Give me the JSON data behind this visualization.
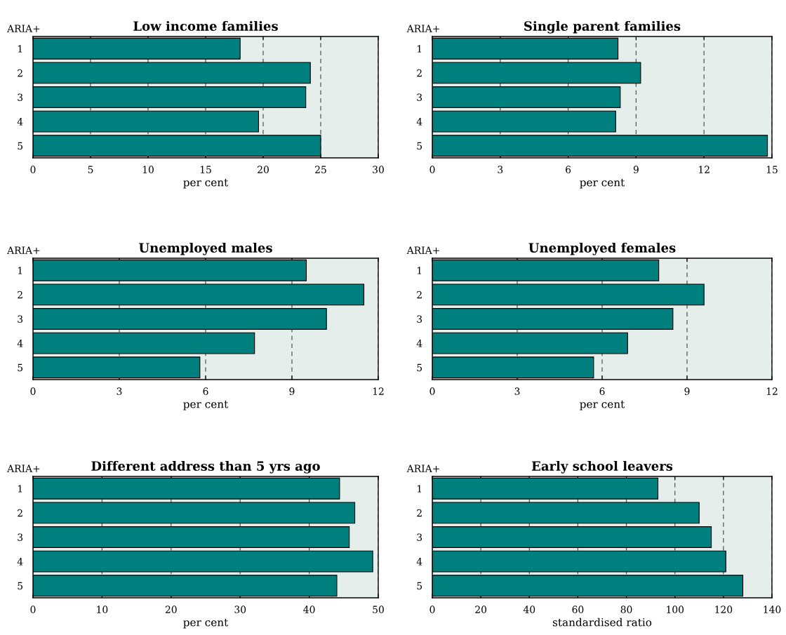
{
  "chart_data": [
    {
      "type": "bar",
      "orientation": "horizontal",
      "title": "Low income families",
      "ylabel": "ARIA+",
      "xlabel": "per cent",
      "categories": [
        "1",
        "2",
        "3",
        "4",
        "5"
      ],
      "values": [
        18.0,
        24.1,
        23.7,
        19.6,
        25.0
      ],
      "color": "#007f7f",
      "xlim": [
        0,
        30
      ],
      "xticks": [
        0,
        5,
        10,
        15,
        20,
        25,
        30
      ],
      "grid": "x"
    },
    {
      "type": "bar",
      "orientation": "horizontal",
      "title": "Single parent families",
      "ylabel": "ARIA+",
      "xlabel": "per cent",
      "categories": [
        "1",
        "2",
        "3",
        "4",
        "5"
      ],
      "values": [
        8.2,
        9.2,
        8.3,
        8.1,
        14.8
      ],
      "color": "#007f7f",
      "xlim": [
        0,
        15
      ],
      "xticks": [
        0,
        3,
        6,
        9,
        12,
        15
      ],
      "grid": "x"
    },
    {
      "type": "bar",
      "orientation": "horizontal",
      "title": "Unemployed males",
      "ylabel": "ARIA+",
      "xlabel": "per cent",
      "categories": [
        "1",
        "2",
        "3",
        "4",
        "5"
      ],
      "values": [
        9.5,
        11.5,
        10.2,
        7.7,
        5.8
      ],
      "color": "#007f7f",
      "xlim": [
        0,
        12
      ],
      "xticks": [
        0,
        3,
        6,
        9,
        12
      ],
      "grid": "x"
    },
    {
      "type": "bar",
      "orientation": "horizontal",
      "title": "Unemployed females",
      "ylabel": "ARIA+",
      "xlabel": "per cent",
      "categories": [
        "1",
        "2",
        "3",
        "4",
        "5"
      ],
      "values": [
        8.0,
        9.6,
        8.5,
        6.9,
        5.7
      ],
      "color": "#007f7f",
      "xlim": [
        0,
        12
      ],
      "xticks": [
        0,
        3,
        6,
        9,
        12
      ],
      "grid": "x"
    },
    {
      "type": "bar",
      "orientation": "horizontal",
      "title": "Different address than 5 yrs ago",
      "ylabel": "ARIA+",
      "xlabel": "per cent",
      "categories": [
        "1",
        "2",
        "3",
        "4",
        "5"
      ],
      "values": [
        44.4,
        46.6,
        45.8,
        49.2,
        44.0
      ],
      "color": "#007f7f",
      "xlim": [
        0,
        50
      ],
      "xticks": [
        0,
        10,
        20,
        30,
        40,
        50
      ],
      "grid": "x"
    },
    {
      "type": "bar",
      "orientation": "horizontal",
      "title": "Early school leavers",
      "ylabel": "ARIA+",
      "xlabel": "standardised ratio",
      "categories": [
        "1",
        "2",
        "3",
        "4",
        "5"
      ],
      "values": [
        93,
        110,
        115,
        121,
        128
      ],
      "color": "#007f7f",
      "xlim": [
        0,
        140
      ],
      "xticks": [
        0,
        20,
        40,
        60,
        80,
        100,
        120,
        140
      ],
      "grid": "x"
    }
  ]
}
